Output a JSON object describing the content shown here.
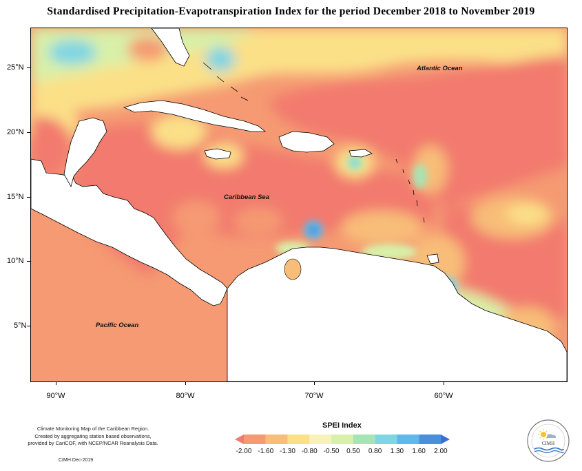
{
  "title": "Standardised Precipitation-Evapotranspiration Index for the period December 2018 to November 2019",
  "axes": {
    "lat_labels": [
      "25°N",
      "20°N",
      "15°N",
      "10°N",
      "5°N"
    ],
    "lon_labels": [
      "90°W",
      "80°W",
      "70°W",
      "60°W"
    ]
  },
  "map_labels": {
    "atlantic": "Atlantic Ocean",
    "caribbean": "Caribbean Sea",
    "pacific": "Pacific Ocean"
  },
  "legend": {
    "title": "SPEI Index",
    "values": [
      "-2.00",
      "-1.60",
      "-1.30",
      "-0.80",
      "-0.50",
      "0.50",
      "0.80",
      "1.30",
      "1.60",
      "2.00"
    ],
    "colors": [
      "#f27a6e",
      "#f59a72",
      "#f8bd78",
      "#fbe088",
      "#f7f3b8",
      "#d8f0a8",
      "#a6e4b6",
      "#7fd5e3",
      "#5fb8ea",
      "#4a8fdc",
      "#3a6fd4"
    ]
  },
  "credits": {
    "line1": "Climate Monitoring Map of the Caribbean Region.",
    "line2": "Created by aggregating station based observations,",
    "line3": "provided by CariCOF, with NCEP/NCAR Reanalysis Data.",
    "stamp": "CIMH Dec-2019"
  },
  "logo": {
    "text": "CIMH"
  }
}
